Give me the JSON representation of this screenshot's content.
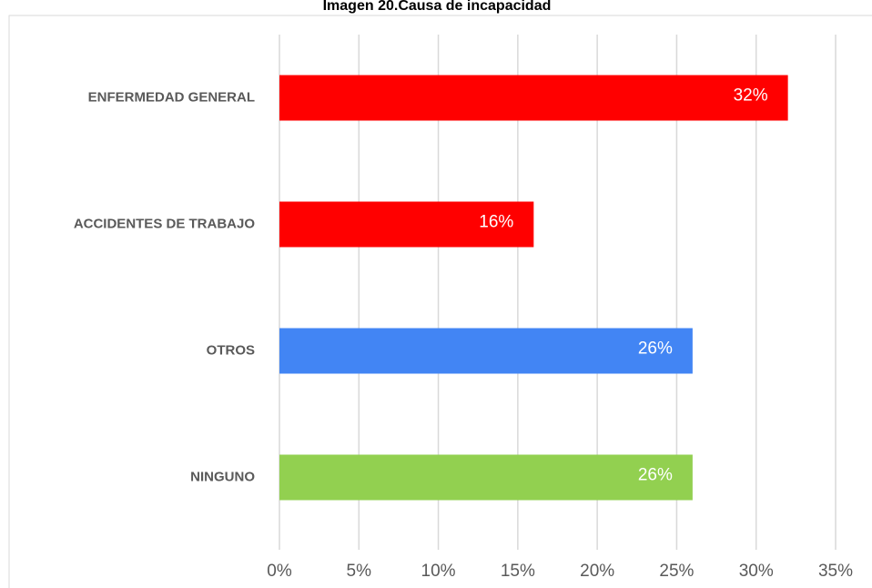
{
  "chart_data": {
    "type": "bar",
    "orientation": "horizontal",
    "title": "Imagen 20.Causa de incapacidad",
    "categories": [
      "ENFERMEDAD GENERAL",
      "ACCIDENTES DE TRABAJO",
      "OTROS",
      "NINGUNO"
    ],
    "values": [
      32,
      16,
      26,
      26
    ],
    "value_labels": [
      "32%",
      "16%",
      "26%",
      "26%"
    ],
    "colors": [
      "#ff0000",
      "#ff0000",
      "#4285f4",
      "#92d050"
    ],
    "xlim": [
      0,
      35
    ],
    "xticks": [
      {
        "value": 0,
        "label": "0%"
      },
      {
        "value": 5,
        "label": "5%"
      },
      {
        "value": 10,
        "label": "10%"
      },
      {
        "value": 15,
        "label": "15%"
      },
      {
        "value": 20,
        "label": "20%"
      },
      {
        "value": 25,
        "label": "25%"
      },
      {
        "value": 30,
        "label": "30%"
      },
      {
        "value": 35,
        "label": "35%"
      }
    ],
    "grid": true
  }
}
